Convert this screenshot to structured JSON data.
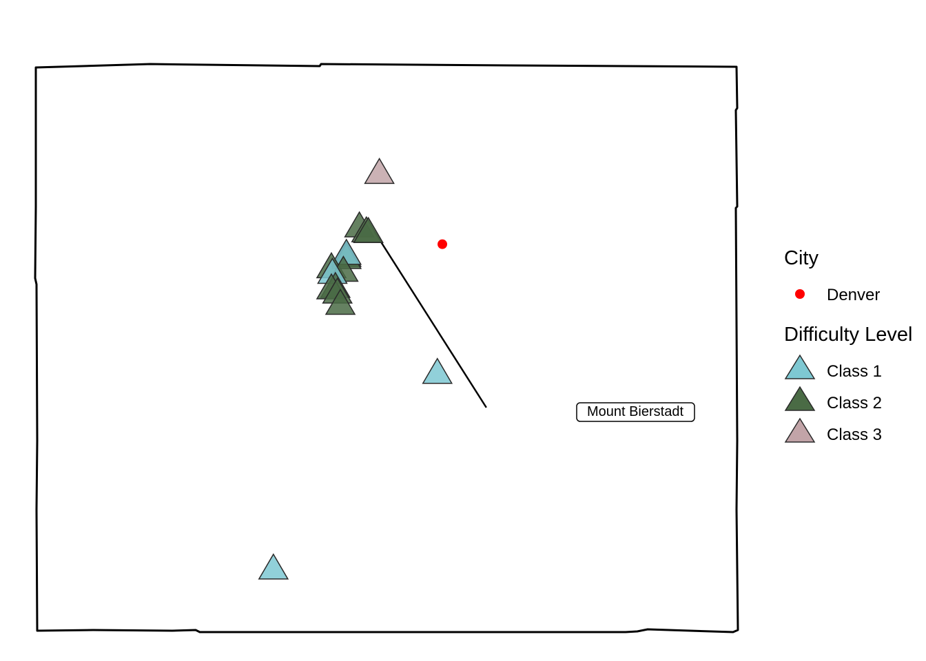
{
  "map": {
    "border_style": "hand-drawn",
    "cities": [
      {
        "name": "Denver",
        "lon": -104.99,
        "lat": 39.74,
        "color": "#ff0000"
      }
    ],
    "peaks": [
      {
        "lon": -105.62,
        "lat": 40.26,
        "class": 3
      },
      {
        "lon": -105.82,
        "lat": 39.88,
        "class": 2
      },
      {
        "lon": -105.75,
        "lat": 39.845,
        "class": 2
      },
      {
        "lon": -105.73,
        "lat": 39.84,
        "class": 2
      },
      {
        "lon": -105.95,
        "lat": 39.67,
        "class": 2
      },
      {
        "lon": -105.95,
        "lat": 39.655,
        "class": 2
      },
      {
        "lon": -105.95,
        "lat": 39.685,
        "class": 1
      },
      {
        "lon": -106.1,
        "lat": 39.59,
        "class": 2
      },
      {
        "lon": -105.98,
        "lat": 39.565,
        "class": 2
      },
      {
        "lon": -106.09,
        "lat": 39.55,
        "class": 1
      },
      {
        "lon": -106.06,
        "lat": 39.45,
        "class": 2
      },
      {
        "lon": -106.1,
        "lat": 39.44,
        "class": 2
      },
      {
        "lon": -106.04,
        "lat": 39.41,
        "class": 2
      },
      {
        "lon": -106.01,
        "lat": 39.33,
        "class": 2
      },
      {
        "lon": -105.04,
        "lat": 38.84,
        "class": 1
      },
      {
        "lon": -106.68,
        "lat": 37.45,
        "class": 1
      }
    ],
    "callout": {
      "label": "Mount Bierstadt",
      "lon": -105.67,
      "lat": 39.83,
      "anchor_lon": -104.55,
      "anchor_lat": 38.58
    }
  },
  "legend": {
    "city_title": "City",
    "city_items": [
      {
        "label": "Denver",
        "color": "#ff0000"
      }
    ],
    "difficulty_title": "Difficulty Level",
    "difficulty_items": [
      {
        "label": "Class 1",
        "class": 1,
        "color": "#7ec8d2"
      },
      {
        "label": "Class 2",
        "class": 2,
        "color": "#4a6b45"
      },
      {
        "label": "Class 3",
        "class": 3,
        "color": "#c2a4a8"
      }
    ]
  }
}
